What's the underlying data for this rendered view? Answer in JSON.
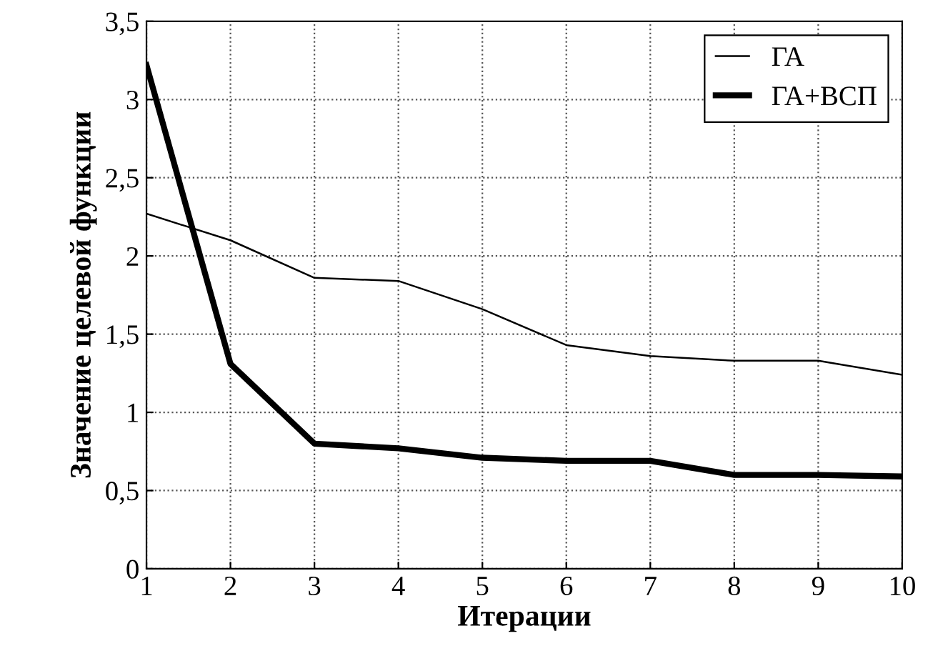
{
  "chart_data": {
    "type": "line",
    "xlabel": "Итерации",
    "ylabel": "Значение целевой функции",
    "x": [
      1,
      2,
      3,
      4,
      5,
      6,
      7,
      8,
      9,
      10
    ],
    "series": [
      {
        "name": "ГА",
        "color": "#000000",
        "values": [
          2.27,
          2.1,
          1.86,
          1.84,
          1.66,
          1.43,
          1.36,
          1.33,
          1.33,
          1.24
        ]
      },
      {
        "name": "ГА+ВСП",
        "color": "#000000",
        "values": [
          3.22,
          1.31,
          0.8,
          0.77,
          0.71,
          0.69,
          0.69,
          0.6,
          0.6,
          0.59
        ]
      }
    ],
    "xlim": [
      1,
      10
    ],
    "xticks": [
      1,
      2,
      3,
      4,
      5,
      6,
      7,
      8,
      9,
      10
    ],
    "ylim": [
      0,
      3.5
    ],
    "yticks": [
      0,
      {
        "value": 0.5,
        "label": "0,5"
      },
      1,
      {
        "value": 1.5,
        "label": "1,5"
      },
      2,
      {
        "value": 2.5,
        "label": "2,5"
      },
      3,
      {
        "value": 3.5,
        "label": "3,5"
      }
    ],
    "grid": true,
    "legend": "top right",
    "marker": "none",
    "line_style": "solid"
  }
}
